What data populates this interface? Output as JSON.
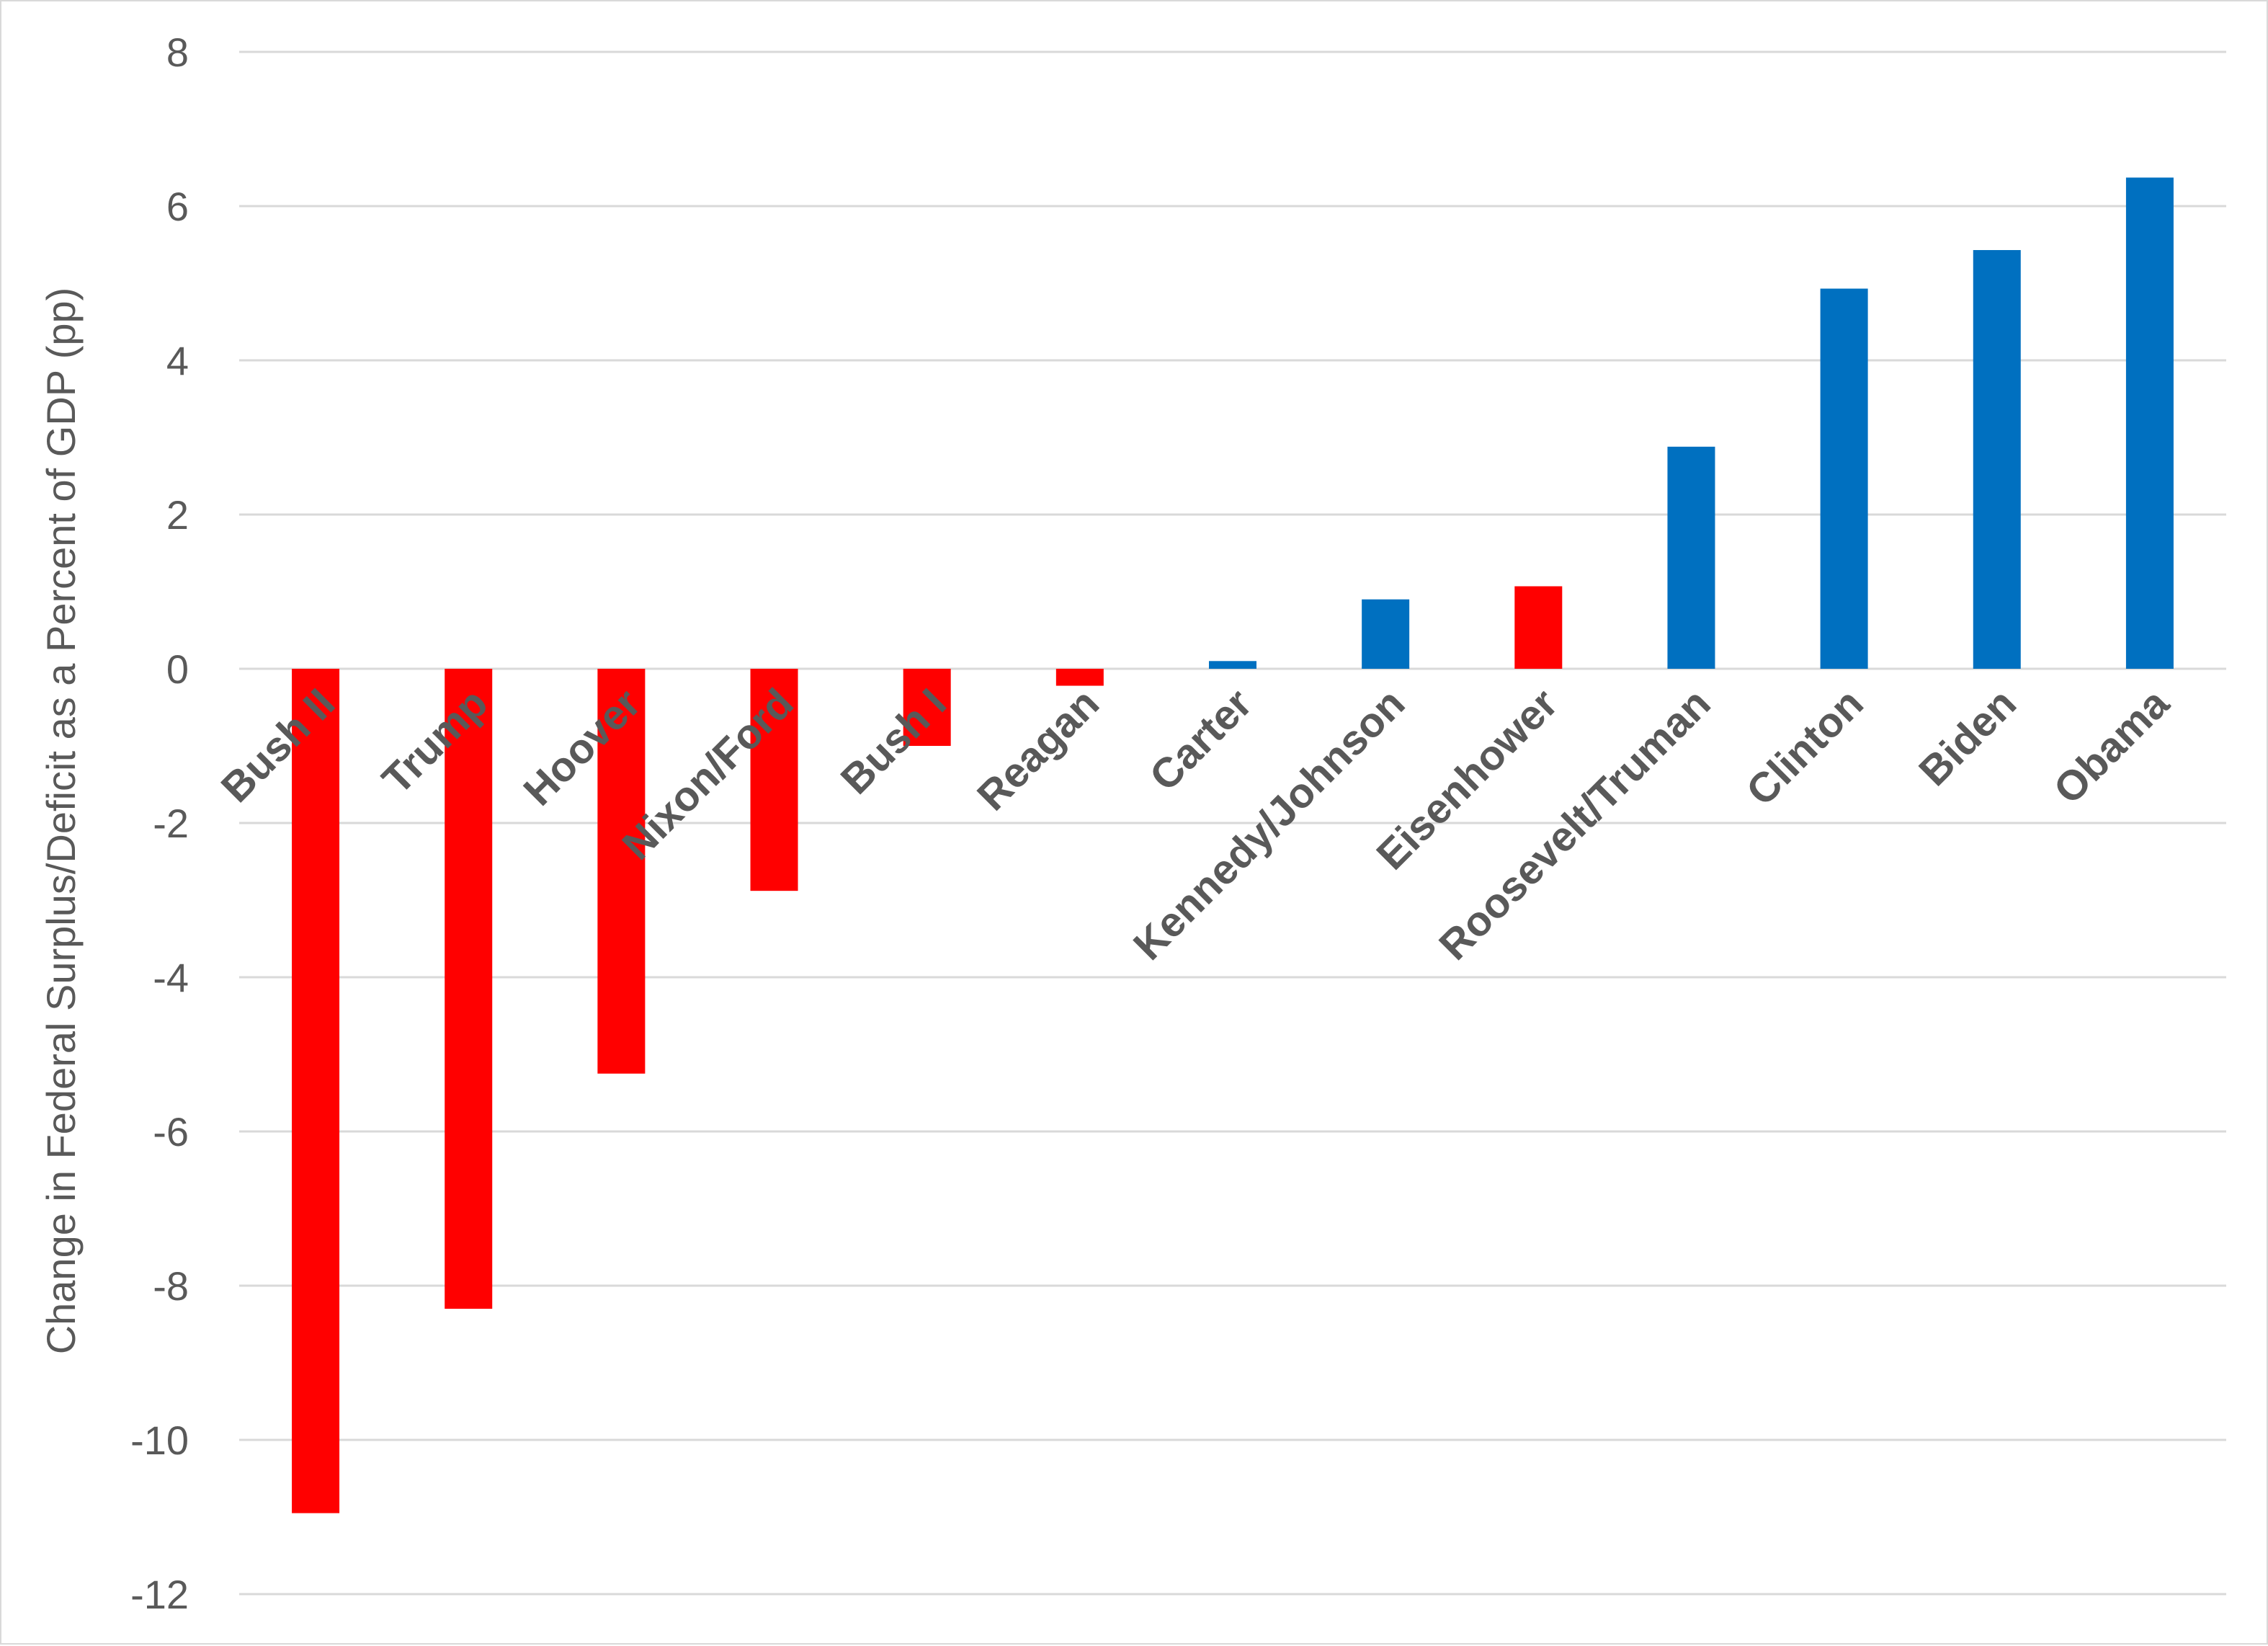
{
  "chart_data": {
    "type": "bar",
    "title": "",
    "xlabel": "",
    "ylabel": "Change in Federal Surplus/Deficit as a Percent of GDP (pp)",
    "ylim": [
      -12,
      8
    ],
    "yticks": [
      8,
      6,
      4,
      2,
      0,
      -2,
      -4,
      -6,
      -8,
      -10,
      -12
    ],
    "grid": true,
    "legend": "none",
    "colors": {
      "republican": "#ff0000",
      "democrat": "#0070c0"
    },
    "categories": [
      "Bush II",
      "Trump",
      "Hoover",
      "Nixon/Ford",
      "Bush I",
      "Reagan",
      "Carter",
      "Kennedy/Johnson",
      "Eisenhower",
      "Roosevelt/Truman",
      "Clinton",
      "Biden",
      "Obama"
    ],
    "values": [
      -10.95,
      -8.3,
      -5.25,
      -2.88,
      -1.0,
      -0.22,
      0.1,
      0.9,
      1.07,
      2.88,
      4.93,
      5.43,
      6.37
    ],
    "party": [
      "republican",
      "republican",
      "republican",
      "republican",
      "republican",
      "republican",
      "democrat",
      "democrat",
      "republican",
      "democrat",
      "democrat",
      "democrat",
      "democrat"
    ]
  }
}
